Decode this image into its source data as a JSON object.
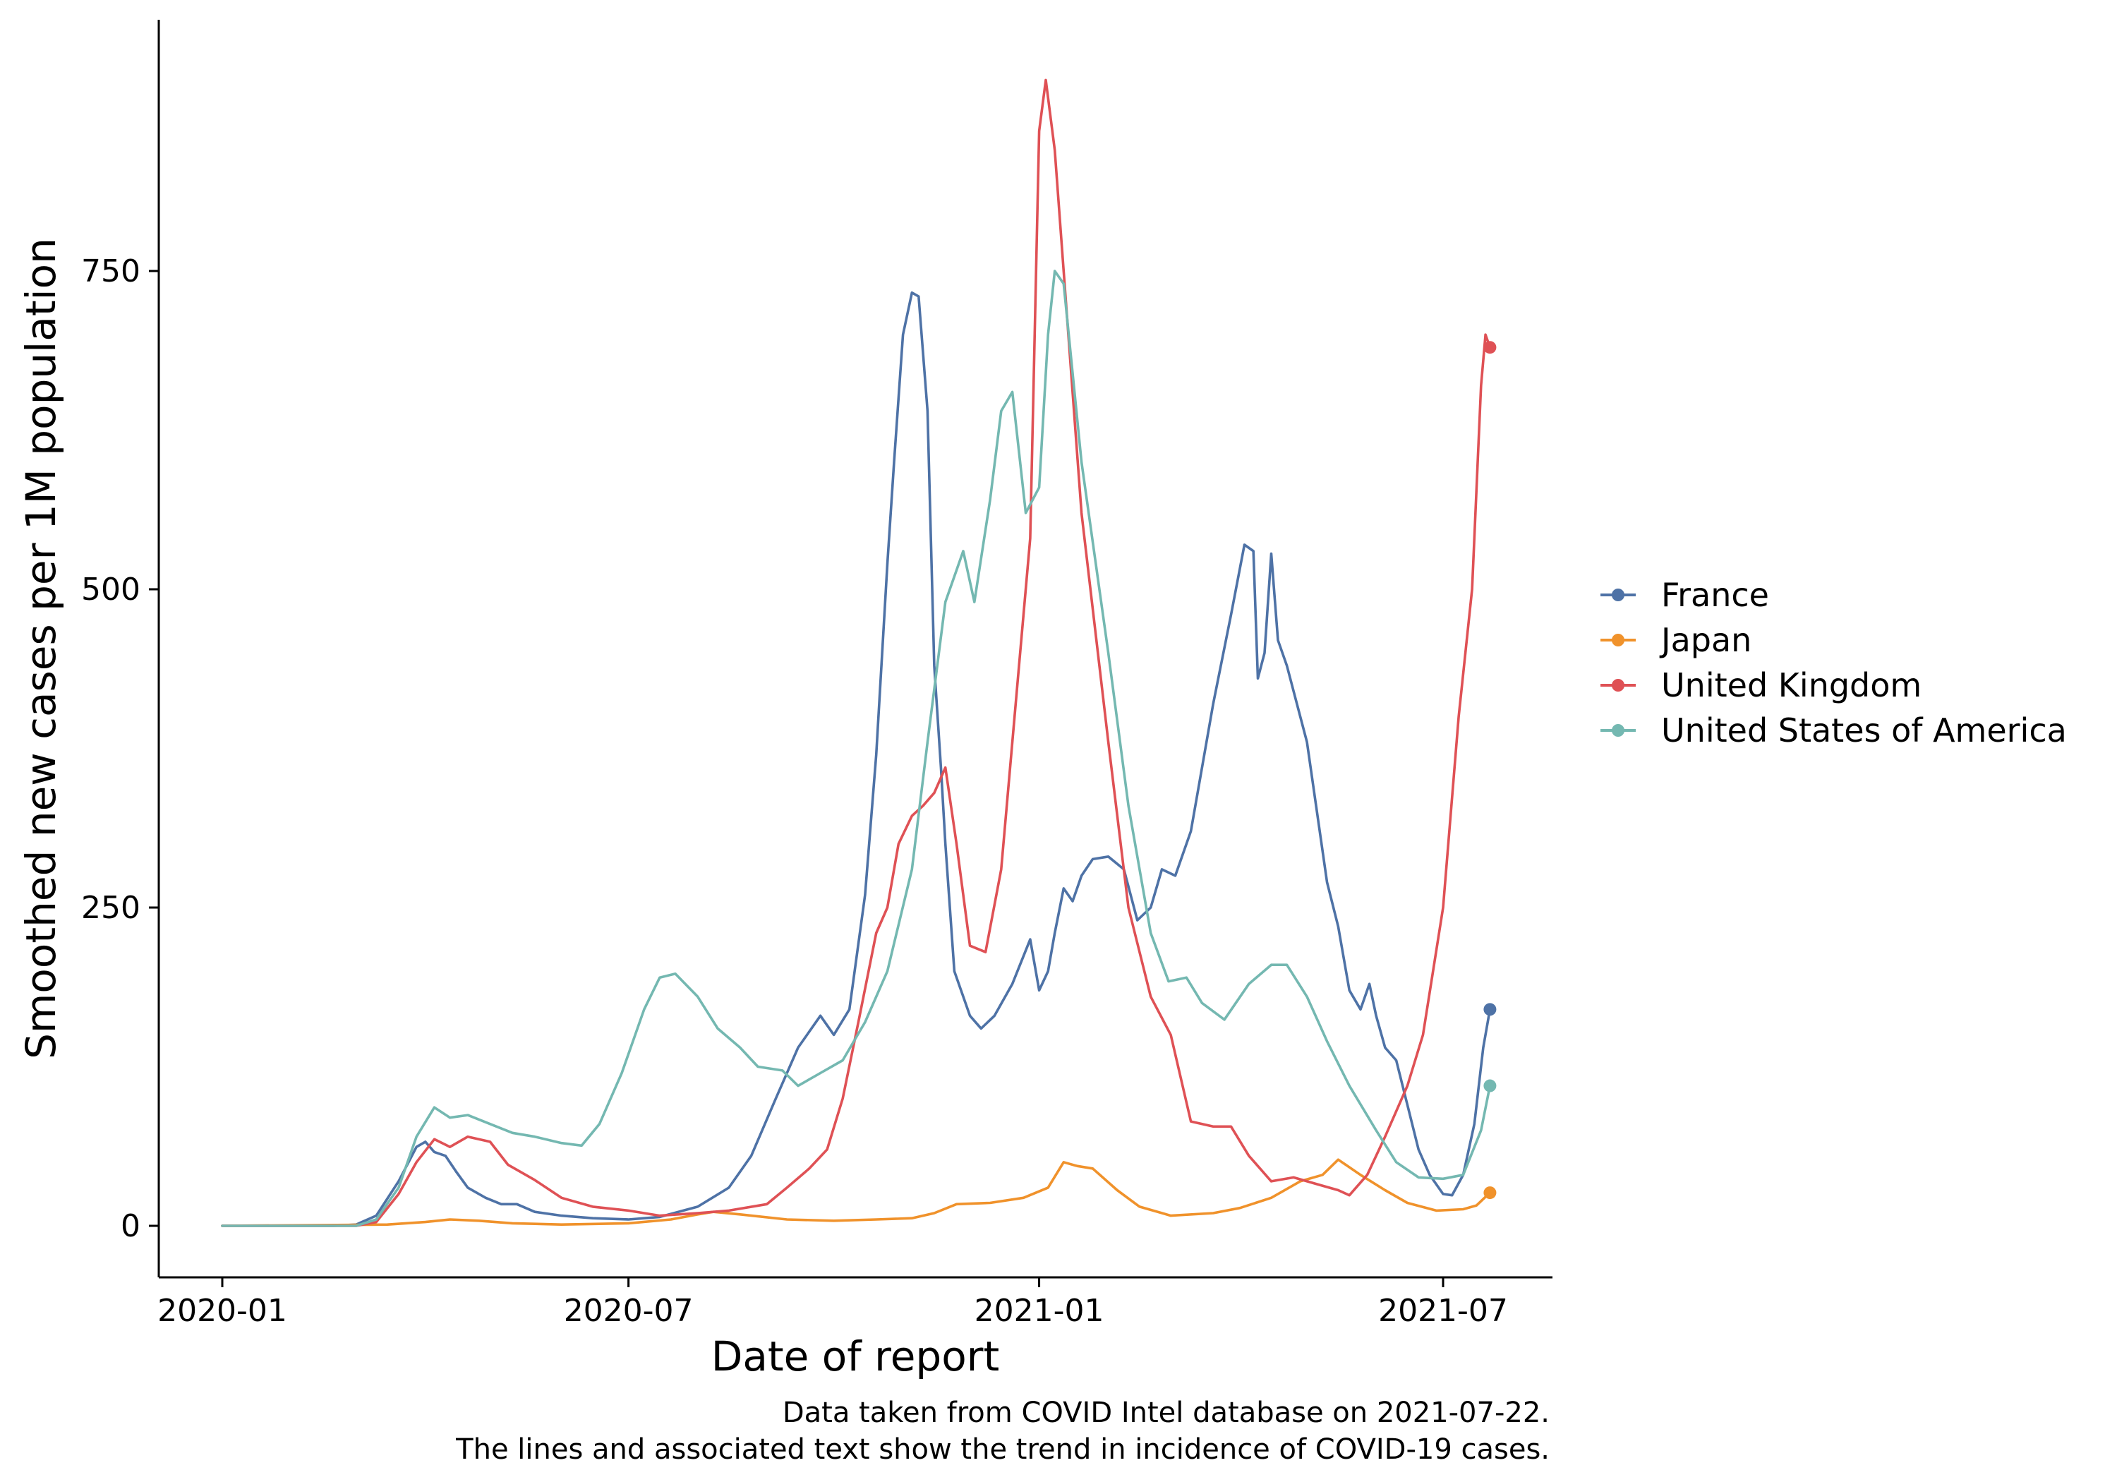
{
  "chart_data": {
    "type": "line",
    "title": "",
    "xlabel": "Date of report",
    "ylabel": "Smoothed new cases per 1M population",
    "x_ticks": [
      "2020-01",
      "2020-07",
      "2021-01",
      "2021-07"
    ],
    "y_ticks": [
      0,
      250,
      500,
      750
    ],
    "xlim": [
      "2020-01-01",
      "2021-08-01"
    ],
    "ylim": [
      -40,
      950
    ],
    "grid": false,
    "legend_position": "right",
    "caption_lines": [
      "Data taken from COVID Intel database on 2021-07-22.",
      "The lines and associated text show the trend in incidence of COVID-19 cases."
    ],
    "series": [
      {
        "name": "France",
        "color": "#4e72a6",
        "points": [
          [
            "2020-01-01",
            0
          ],
          [
            "2020-02-20",
            0
          ],
          [
            "2020-03-01",
            1
          ],
          [
            "2020-03-10",
            8
          ],
          [
            "2020-03-20",
            35
          ],
          [
            "2020-03-28",
            62
          ],
          [
            "2020-04-01",
            66
          ],
          [
            "2020-04-05",
            58
          ],
          [
            "2020-04-10",
            55
          ],
          [
            "2020-04-15",
            42
          ],
          [
            "2020-04-20",
            30
          ],
          [
            "2020-04-28",
            22
          ],
          [
            "2020-05-05",
            17
          ],
          [
            "2020-05-12",
            17
          ],
          [
            "2020-05-20",
            11
          ],
          [
            "2020-06-01",
            8
          ],
          [
            "2020-06-15",
            6
          ],
          [
            "2020-07-01",
            5
          ],
          [
            "2020-07-15",
            7
          ],
          [
            "2020-08-01",
            15
          ],
          [
            "2020-08-15",
            30
          ],
          [
            "2020-08-25",
            55
          ],
          [
            "2020-09-05",
            100
          ],
          [
            "2020-09-15",
            140
          ],
          [
            "2020-09-25",
            165
          ],
          [
            "2020-10-01",
            150
          ],
          [
            "2020-10-08",
            170
          ],
          [
            "2020-10-15",
            260
          ],
          [
            "2020-10-20",
            370
          ],
          [
            "2020-10-25",
            520
          ],
          [
            "2020-10-28",
            600
          ],
          [
            "2020-11-01",
            700
          ],
          [
            "2020-11-05",
            733
          ],
          [
            "2020-11-08",
            730
          ],
          [
            "2020-11-12",
            640
          ],
          [
            "2020-11-15",
            440
          ],
          [
            "2020-11-18",
            360
          ],
          [
            "2020-11-20",
            300
          ],
          [
            "2020-11-24",
            200
          ],
          [
            "2020-12-01",
            165
          ],
          [
            "2020-12-06",
            155
          ],
          [
            "2020-12-12",
            165
          ],
          [
            "2020-12-20",
            190
          ],
          [
            "2020-12-28",
            225
          ],
          [
            "2021-01-01",
            185
          ],
          [
            "2021-01-05",
            200
          ],
          [
            "2021-01-08",
            230
          ],
          [
            "2021-01-12",
            265
          ],
          [
            "2021-01-16",
            255
          ],
          [
            "2021-01-20",
            275
          ],
          [
            "2021-01-25",
            288
          ],
          [
            "2021-02-01",
            290
          ],
          [
            "2021-02-08",
            280
          ],
          [
            "2021-02-14",
            240
          ],
          [
            "2021-02-20",
            250
          ],
          [
            "2021-02-25",
            280
          ],
          [
            "2021-03-03",
            275
          ],
          [
            "2021-03-10",
            310
          ],
          [
            "2021-03-20",
            410
          ],
          [
            "2021-03-28",
            480
          ],
          [
            "2021-04-03",
            535
          ],
          [
            "2021-04-07",
            530
          ],
          [
            "2021-04-09",
            430
          ],
          [
            "2021-04-12",
            450
          ],
          [
            "2021-04-15",
            528
          ],
          [
            "2021-04-18",
            460
          ],
          [
            "2021-04-22",
            440
          ],
          [
            "2021-05-01",
            380
          ],
          [
            "2021-05-10",
            270
          ],
          [
            "2021-05-15",
            235
          ],
          [
            "2021-05-20",
            185
          ],
          [
            "2021-05-25",
            170
          ],
          [
            "2021-05-29",
            190
          ],
          [
            "2021-06-01",
            165
          ],
          [
            "2021-06-05",
            140
          ],
          [
            "2021-06-10",
            130
          ],
          [
            "2021-06-15",
            95
          ],
          [
            "2021-06-20",
            60
          ],
          [
            "2021-06-25",
            40
          ],
          [
            "2021-07-01",
            25
          ],
          [
            "2021-07-05",
            24
          ],
          [
            "2021-07-10",
            40
          ],
          [
            "2021-07-15",
            80
          ],
          [
            "2021-07-19",
            140
          ],
          [
            "2021-07-22",
            170
          ]
        ]
      },
      {
        "name": "Japan",
        "color": "#f0922b",
        "points": [
          [
            "2020-01-01",
            0
          ],
          [
            "2020-03-15",
            1
          ],
          [
            "2020-04-01",
            3
          ],
          [
            "2020-04-12",
            5
          ],
          [
            "2020-04-25",
            4
          ],
          [
            "2020-05-10",
            2
          ],
          [
            "2020-06-01",
            1
          ],
          [
            "2020-07-01",
            2
          ],
          [
            "2020-07-20",
            5
          ],
          [
            "2020-08-01",
            9
          ],
          [
            "2020-08-08",
            11
          ],
          [
            "2020-08-20",
            9
          ],
          [
            "2020-09-10",
            5
          ],
          [
            "2020-10-01",
            4
          ],
          [
            "2020-10-20",
            5
          ],
          [
            "2020-11-05",
            6
          ],
          [
            "2020-11-15",
            10
          ],
          [
            "2020-11-25",
            17
          ],
          [
            "2020-12-10",
            18
          ],
          [
            "2020-12-25",
            22
          ],
          [
            "2021-01-05",
            30
          ],
          [
            "2021-01-12",
            50
          ],
          [
            "2021-01-18",
            47
          ],
          [
            "2021-01-25",
            45
          ],
          [
            "2021-02-05",
            28
          ],
          [
            "2021-02-15",
            15
          ],
          [
            "2021-03-01",
            8
          ],
          [
            "2021-03-20",
            10
          ],
          [
            "2021-04-01",
            14
          ],
          [
            "2021-04-15",
            22
          ],
          [
            "2021-04-28",
            35
          ],
          [
            "2021-05-08",
            40
          ],
          [
            "2021-05-15",
            52
          ],
          [
            "2021-05-25",
            40
          ],
          [
            "2021-06-05",
            28
          ],
          [
            "2021-06-15",
            18
          ],
          [
            "2021-06-28",
            12
          ],
          [
            "2021-07-10",
            13
          ],
          [
            "2021-07-16",
            16
          ],
          [
            "2021-07-22",
            26
          ]
        ]
      },
      {
        "name": "United Kingdom",
        "color": "#df5155",
        "points": [
          [
            "2020-01-01",
            0
          ],
          [
            "2020-03-01",
            0
          ],
          [
            "2020-03-10",
            3
          ],
          [
            "2020-03-20",
            25
          ],
          [
            "2020-03-28",
            50
          ],
          [
            "2020-04-05",
            68
          ],
          [
            "2020-04-12",
            62
          ],
          [
            "2020-04-20",
            70
          ],
          [
            "2020-04-30",
            66
          ],
          [
            "2020-05-08",
            48
          ],
          [
            "2020-05-20",
            36
          ],
          [
            "2020-06-01",
            22
          ],
          [
            "2020-06-15",
            15
          ],
          [
            "2020-07-01",
            12
          ],
          [
            "2020-07-15",
            8
          ],
          [
            "2020-08-01",
            10
          ],
          [
            "2020-08-15",
            12
          ],
          [
            "2020-09-01",
            17
          ],
          [
            "2020-09-10",
            30
          ],
          [
            "2020-09-20",
            45
          ],
          [
            "2020-09-28",
            60
          ],
          [
            "2020-10-05",
            100
          ],
          [
            "2020-10-12",
            160
          ],
          [
            "2020-10-20",
            230
          ],
          [
            "2020-10-25",
            250
          ],
          [
            "2020-10-30",
            300
          ],
          [
            "2020-11-05",
            322
          ],
          [
            "2020-11-10",
            330
          ],
          [
            "2020-11-15",
            340
          ],
          [
            "2020-11-20",
            360
          ],
          [
            "2020-11-25",
            300
          ],
          [
            "2020-12-01",
            220
          ],
          [
            "2020-12-08",
            215
          ],
          [
            "2020-12-15",
            280
          ],
          [
            "2020-12-22",
            420
          ],
          [
            "2020-12-28",
            540
          ],
          [
            "2021-01-01",
            860
          ],
          [
            "2021-01-04",
            900
          ],
          [
            "2021-01-08",
            845
          ],
          [
            "2021-01-12",
            750
          ],
          [
            "2021-01-20",
            560
          ],
          [
            "2021-02-01",
            380
          ],
          [
            "2021-02-10",
            250
          ],
          [
            "2021-02-20",
            180
          ],
          [
            "2021-03-01",
            150
          ],
          [
            "2021-03-10",
            82
          ],
          [
            "2021-03-20",
            78
          ],
          [
            "2021-03-28",
            78
          ],
          [
            "2021-04-05",
            55
          ],
          [
            "2021-04-15",
            35
          ],
          [
            "2021-04-25",
            38
          ],
          [
            "2021-05-05",
            33
          ],
          [
            "2021-05-15",
            28
          ],
          [
            "2021-05-20",
            24
          ],
          [
            "2021-05-28",
            40
          ],
          [
            "2021-06-05",
            70
          ],
          [
            "2021-06-15",
            110
          ],
          [
            "2021-06-22",
            150
          ],
          [
            "2021-07-01",
            250
          ],
          [
            "2021-07-08",
            400
          ],
          [
            "2021-07-14",
            500
          ],
          [
            "2021-07-18",
            660
          ],
          [
            "2021-07-20",
            700
          ],
          [
            "2021-07-22",
            690
          ]
        ]
      },
      {
        "name": "United States of America",
        "color": "#74b8b1",
        "points": [
          [
            "2020-01-01",
            0
          ],
          [
            "2020-03-01",
            0
          ],
          [
            "2020-03-10",
            5
          ],
          [
            "2020-03-20",
            30
          ],
          [
            "2020-03-28",
            70
          ],
          [
            "2020-04-05",
            93
          ],
          [
            "2020-04-12",
            85
          ],
          [
            "2020-04-20",
            87
          ],
          [
            "2020-04-30",
            80
          ],
          [
            "2020-05-10",
            73
          ],
          [
            "2020-05-20",
            70
          ],
          [
            "2020-06-01",
            65
          ],
          [
            "2020-06-10",
            63
          ],
          [
            "2020-06-18",
            80
          ],
          [
            "2020-06-28",
            120
          ],
          [
            "2020-07-08",
            170
          ],
          [
            "2020-07-15",
            195
          ],
          [
            "2020-07-22",
            198
          ],
          [
            "2020-08-01",
            180
          ],
          [
            "2020-08-10",
            155
          ],
          [
            "2020-08-20",
            140
          ],
          [
            "2020-08-28",
            125
          ],
          [
            "2020-09-08",
            122
          ],
          [
            "2020-09-15",
            110
          ],
          [
            "2020-09-25",
            120
          ],
          [
            "2020-10-05",
            130
          ],
          [
            "2020-10-15",
            160
          ],
          [
            "2020-10-25",
            200
          ],
          [
            "2020-11-05",
            280
          ],
          [
            "2020-11-12",
            380
          ],
          [
            "2020-11-20",
            490
          ],
          [
            "2020-11-28",
            530
          ],
          [
            "2020-12-03",
            490
          ],
          [
            "2020-12-10",
            570
          ],
          [
            "2020-12-15",
            640
          ],
          [
            "2020-12-20",
            655
          ],
          [
            "2020-12-26",
            560
          ],
          [
            "2021-01-01",
            580
          ],
          [
            "2021-01-05",
            700
          ],
          [
            "2021-01-08",
            750
          ],
          [
            "2021-01-12",
            740
          ],
          [
            "2021-01-20",
            600
          ],
          [
            "2021-02-01",
            450
          ],
          [
            "2021-02-10",
            330
          ],
          [
            "2021-02-20",
            230
          ],
          [
            "2021-02-28",
            192
          ],
          [
            "2021-03-08",
            195
          ],
          [
            "2021-03-15",
            175
          ],
          [
            "2021-03-25",
            162
          ],
          [
            "2021-04-05",
            190
          ],
          [
            "2021-04-15",
            205
          ],
          [
            "2021-04-22",
            205
          ],
          [
            "2021-05-01",
            180
          ],
          [
            "2021-05-10",
            145
          ],
          [
            "2021-05-20",
            110
          ],
          [
            "2021-06-01",
            75
          ],
          [
            "2021-06-10",
            50
          ],
          [
            "2021-06-20",
            38
          ],
          [
            "2021-07-01",
            37
          ],
          [
            "2021-07-10",
            40
          ],
          [
            "2021-07-18",
            75
          ],
          [
            "2021-07-22",
            110
          ]
        ]
      }
    ]
  }
}
